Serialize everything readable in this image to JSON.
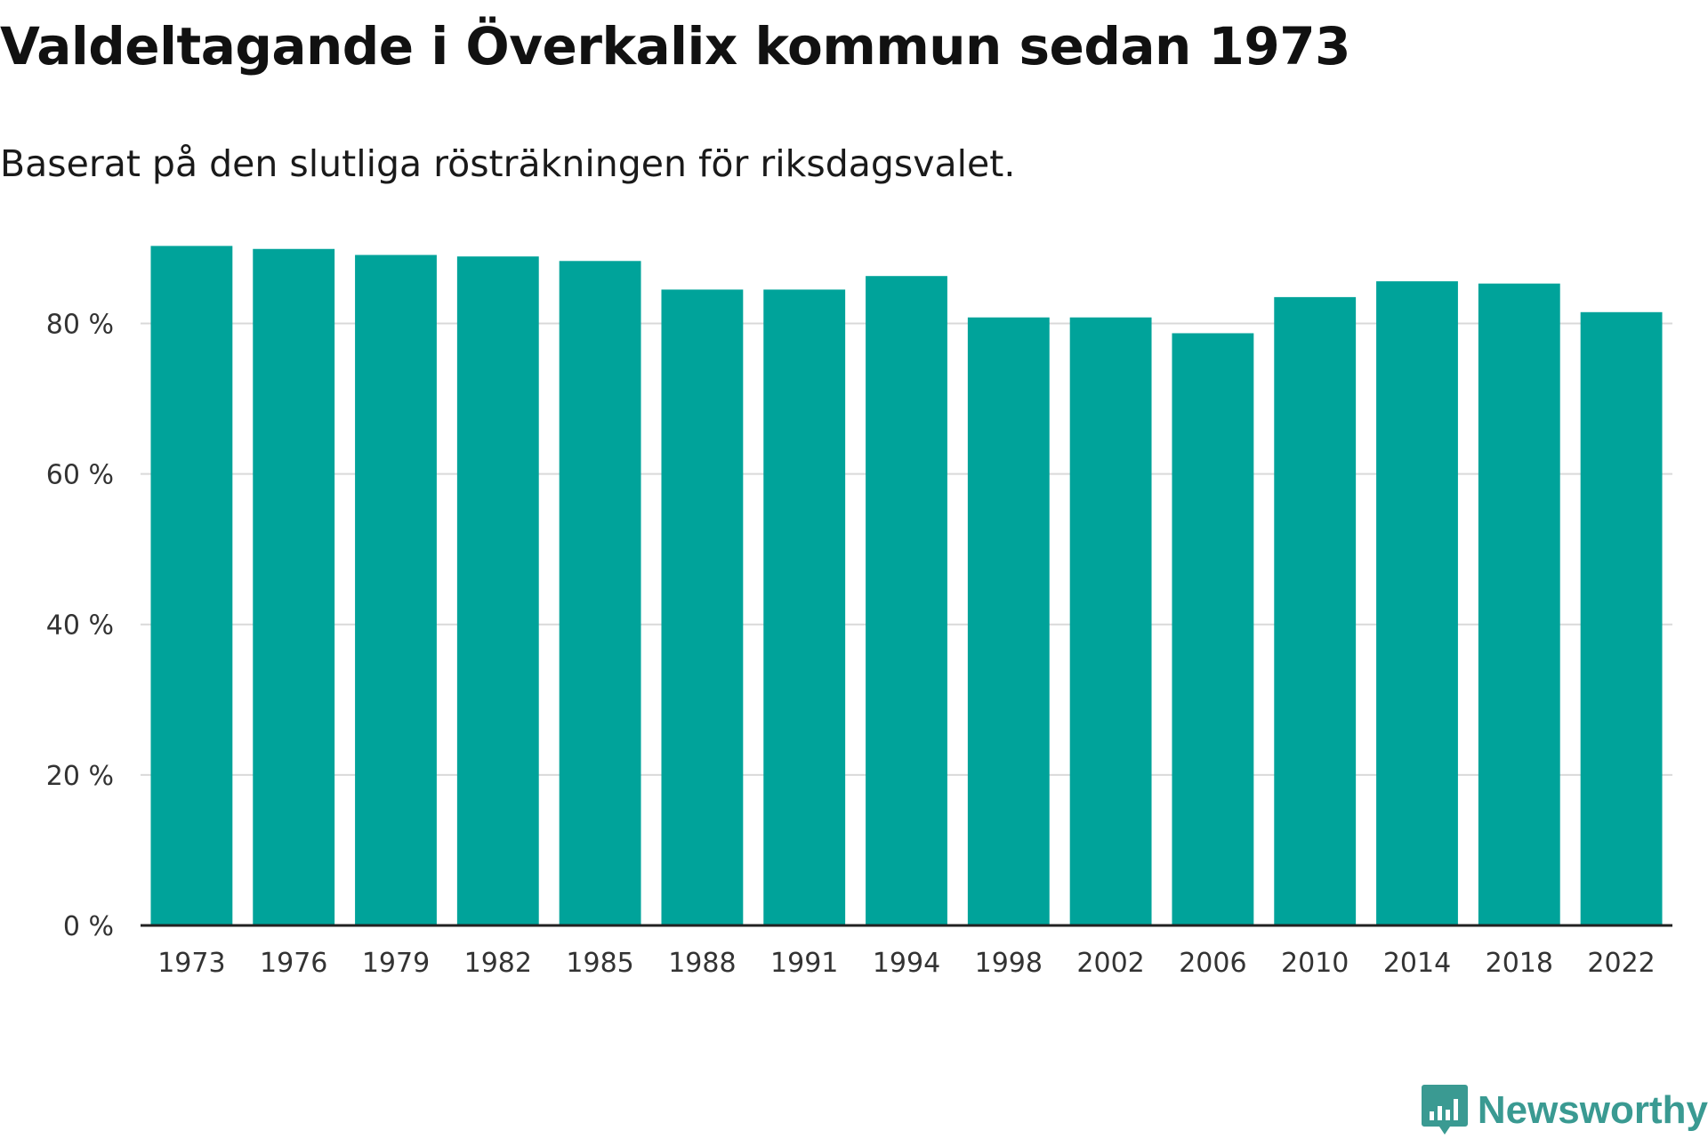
{
  "colors": {
    "bar": "#00a39a",
    "grid": "#d9d9d9",
    "axis": "#222222",
    "brand": "#3a9a92"
  },
  "brand": {
    "name": "Newsworthy",
    "icon": "newsworthy-logo-icon"
  },
  "chart_data": {
    "type": "bar",
    "title": "Valdeltagande i Överkalix kommun sedan 1973",
    "subtitle": "Baserat på den slutliga rösträkningen för riksdagsvalet.",
    "xlabel": "",
    "ylabel": "",
    "ylim": [
      0,
      92
    ],
    "yticks": [
      0,
      20,
      40,
      60,
      80
    ],
    "ytick_labels": [
      "0 %",
      "20 %",
      "40 %",
      "60 %",
      "80 %"
    ],
    "grid": true,
    "categories": [
      "1973",
      "1976",
      "1979",
      "1982",
      "1985",
      "1988",
      "1991",
      "1994",
      "1998",
      "2002",
      "2006",
      "2010",
      "2014",
      "2018",
      "2022"
    ],
    "values": [
      90.3,
      89.9,
      89.1,
      88.9,
      88.3,
      84.5,
      84.5,
      86.3,
      80.8,
      80.8,
      78.7,
      83.5,
      85.6,
      85.3,
      81.5
    ]
  }
}
